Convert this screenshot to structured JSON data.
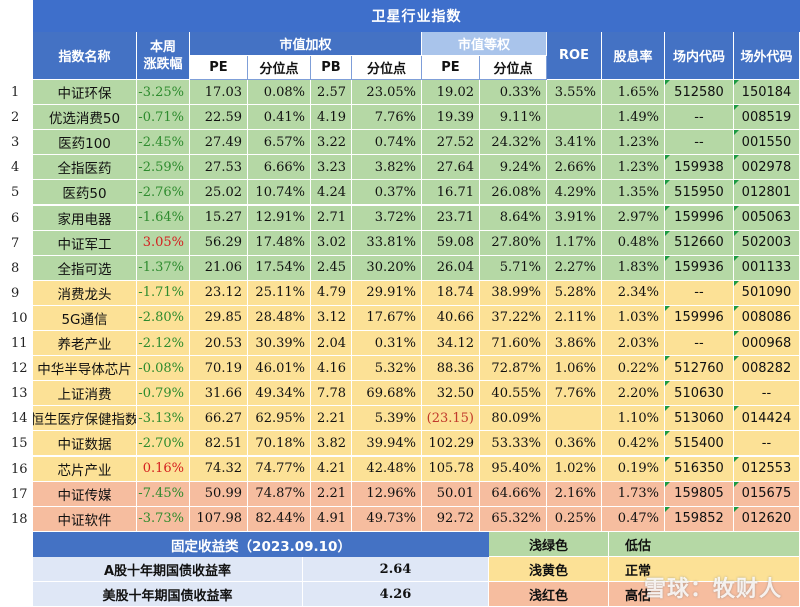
{
  "title": "卫星行业指数",
  "headers": {
    "name": "指数名称",
    "weekly": "本周\n涨跌幅",
    "cap_weighted": "市值加权",
    "equal_weighted": "市值等权",
    "pe": "PE",
    "percentile": "分位点",
    "pb": "PB",
    "roe": "ROE",
    "div": "股息率",
    "onsite": "场内代码",
    "offsite": "场外代码"
  },
  "rows": [
    {
      "n": "1",
      "name": "中证环保",
      "chg": "-3.25%",
      "pe": "17.03",
      "pep": "0.08%",
      "pb": "2.57",
      "pbp": "23.05%",
      "epe": "19.02",
      "epep": "0.33%",
      "roe": "3.55%",
      "div": "1.65%",
      "on": "512580",
      "off": "150184",
      "zone": "green"
    },
    {
      "n": "2",
      "name": "优选消费50",
      "chg": "-0.71%",
      "pe": "22.59",
      "pep": "0.41%",
      "pb": "4.19",
      "pbp": "7.76%",
      "epe": "19.39",
      "epep": "9.11%",
      "roe": "",
      "div": "1.49%",
      "on": "--",
      "off": "008519",
      "zone": "green"
    },
    {
      "n": "3",
      "name": "医药100",
      "chg": "-2.45%",
      "pe": "27.49",
      "pep": "6.57%",
      "pb": "3.22",
      "pbp": "0.74%",
      "epe": "27.52",
      "epep": "24.32%",
      "roe": "3.41%",
      "div": "1.23%",
      "on": "--",
      "off": "001550",
      "zone": "green"
    },
    {
      "n": "4",
      "name": "全指医药",
      "chg": "-2.59%",
      "pe": "27.53",
      "pep": "6.66%",
      "pb": "3.23",
      "pbp": "3.82%",
      "epe": "27.64",
      "epep": "9.24%",
      "roe": "2.66%",
      "div": "1.23%",
      "on": "159938",
      "off": "002978",
      "zone": "green"
    },
    {
      "n": "5",
      "name": "医药50",
      "chg": "-2.76%",
      "pe": "25.02",
      "pep": "10.74%",
      "pb": "4.24",
      "pbp": "0.37%",
      "epe": "16.71",
      "epep": "26.08%",
      "roe": "4.29%",
      "div": "1.35%",
      "on": "515950",
      "off": "012801",
      "zone": "green"
    },
    {
      "n": "6",
      "name": "家用电器",
      "chg": "-1.64%",
      "pe": "15.27",
      "pep": "12.91%",
      "pb": "2.71",
      "pbp": "3.72%",
      "epe": "23.71",
      "epep": "8.64%",
      "roe": "3.91%",
      "div": "2.97%",
      "on": "159996",
      "off": "005063",
      "zone": "green"
    },
    {
      "n": "7",
      "name": "中证军工",
      "chg": "3.05%",
      "pe": "56.29",
      "pep": "17.48%",
      "pb": "3.02",
      "pbp": "33.81%",
      "epe": "59.08",
      "epep": "27.80%",
      "roe": "1.17%",
      "div": "0.48%",
      "on": "512660",
      "off": "502003",
      "zone": "green"
    },
    {
      "n": "8",
      "name": "全指可选",
      "chg": "-1.37%",
      "pe": "21.06",
      "pep": "17.54%",
      "pb": "2.45",
      "pbp": "30.20%",
      "epe": "26.04",
      "epep": "5.71%",
      "roe": "2.27%",
      "div": "1.83%",
      "on": "159936",
      "off": "001133",
      "zone": "green"
    },
    {
      "n": "9",
      "name": "消费龙头",
      "chg": "-1.71%",
      "pe": "23.12",
      "pep": "25.11%",
      "pb": "4.79",
      "pbp": "29.91%",
      "epe": "18.74",
      "epep": "38.99%",
      "roe": "5.28%",
      "div": "2.34%",
      "on": "--",
      "off": "501090",
      "zone": "yellow"
    },
    {
      "n": "10",
      "name": "5G通信",
      "chg": "-2.80%",
      "pe": "29.85",
      "pep": "28.48%",
      "pb": "3.12",
      "pbp": "17.67%",
      "epe": "40.66",
      "epep": "37.22%",
      "roe": "2.11%",
      "div": "1.03%",
      "on": "159996",
      "off": "008086",
      "zone": "yellow"
    },
    {
      "n": "11",
      "name": "养老产业",
      "chg": "-2.12%",
      "pe": "20.53",
      "pep": "30.39%",
      "pb": "2.04",
      "pbp": "0.31%",
      "epe": "34.12",
      "epep": "71.60%",
      "roe": "3.86%",
      "div": "2.03%",
      "on": "--",
      "off": "000968",
      "zone": "yellow"
    },
    {
      "n": "12",
      "name": "中华半导体芯片",
      "chg": "-0.08%",
      "pe": "70.19",
      "pep": "46.01%",
      "pb": "4.16",
      "pbp": "5.32%",
      "epe": "88.36",
      "epep": "72.87%",
      "roe": "1.06%",
      "div": "0.22%",
      "on": "512760",
      "off": "008282",
      "zone": "yellow"
    },
    {
      "n": "13",
      "name": "上证消费",
      "chg": "-0.79%",
      "pe": "31.66",
      "pep": "49.34%",
      "pb": "7.78",
      "pbp": "69.68%",
      "epe": "32.50",
      "epep": "40.55%",
      "roe": "7.76%",
      "div": "2.20%",
      "on": "510630",
      "off": "--",
      "zone": "yellow"
    },
    {
      "n": "14",
      "name": "恒生医疗保健指数",
      "chg": "-3.13%",
      "pe": "66.27",
      "pep": "62.95%",
      "pb": "2.21",
      "pbp": "5.39%",
      "epe": "(23.15)",
      "epep": "80.09%",
      "roe": "",
      "div": "1.10%",
      "on": "513060",
      "off": "014424",
      "zone": "yellow"
    },
    {
      "n": "15",
      "name": "中证数据",
      "chg": "-2.70%",
      "pe": "82.51",
      "pep": "70.18%",
      "pb": "3.82",
      "pbp": "39.94%",
      "epe": "102.29",
      "epep": "53.33%",
      "roe": "0.36%",
      "div": "0.42%",
      "on": "515400",
      "off": "--",
      "zone": "yellow"
    },
    {
      "n": "16",
      "name": "芯片产业",
      "chg": "0.16%",
      "pe": "74.32",
      "pep": "74.77%",
      "pb": "4.21",
      "pbp": "42.48%",
      "epe": "105.78",
      "epep": "95.40%",
      "roe": "1.02%",
      "div": "0.19%",
      "on": "516350",
      "off": "012553",
      "zone": "yellow"
    },
    {
      "n": "17",
      "name": "中证传媒",
      "chg": "-7.45%",
      "pe": "50.99",
      "pep": "74.87%",
      "pb": "2.21",
      "pbp": "12.96%",
      "epe": "50.01",
      "epep": "64.66%",
      "roe": "2.16%",
      "div": "1.73%",
      "on": "159805",
      "off": "015675",
      "zone": "red"
    },
    {
      "n": "18",
      "name": "中证软件",
      "chg": "-3.73%",
      "pe": "107.98",
      "pep": "82.44%",
      "pb": "4.91",
      "pbp": "49.73%",
      "epe": "92.72",
      "epep": "65.32%",
      "roe": "0.25%",
      "div": "0.47%",
      "on": "159852",
      "off": "012620",
      "zone": "red"
    }
  ],
  "fixed_income": {
    "title": "固定收益类（2023.09.10）",
    "rows": [
      {
        "label": "A股十年期国债收益率",
        "value": "2.64"
      },
      {
        "label": "美股十年期国债收益率",
        "value": "4.26"
      }
    ]
  },
  "legend": [
    {
      "color_name": "浅绿色",
      "meaning": "低估",
      "zone": "green"
    },
    {
      "color_name": "浅黄色",
      "meaning": "正常",
      "zone": "yellow"
    },
    {
      "color_name": "浅红色",
      "meaning": "高估",
      "zone": "red"
    }
  ],
  "watermark": "雪球：牧财人",
  "colors": {
    "green": "#b5d8a5",
    "yellow": "#fce196",
    "red": "#f6bd9f",
    "header": "#4472c4",
    "title": "#3e6fcb"
  }
}
